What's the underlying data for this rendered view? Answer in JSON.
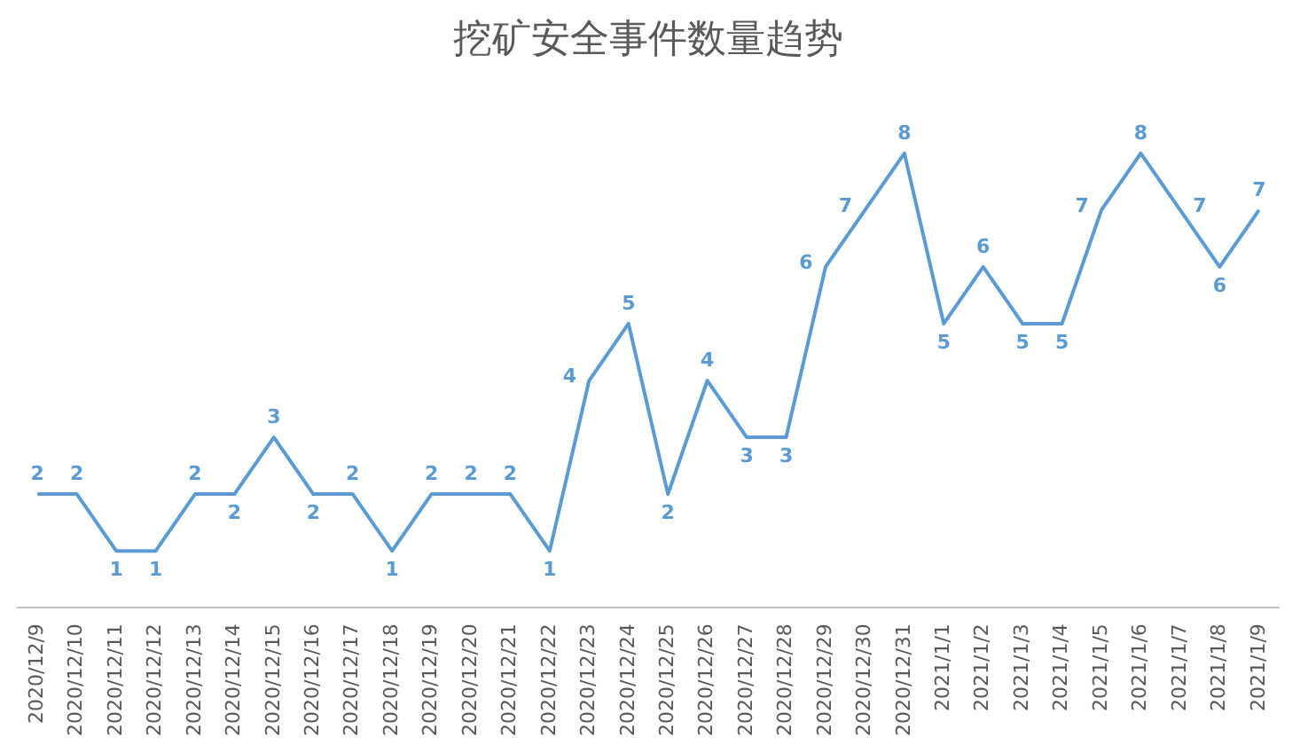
{
  "chart_data": {
    "type": "line",
    "title": "挖矿安全事件数量趋势",
    "categories": [
      "2020/12/9",
      "2020/12/10",
      "2020/12/11",
      "2020/12/12",
      "2020/12/13",
      "2020/12/14",
      "2020/12/15",
      "2020/12/16",
      "2020/12/17",
      "2020/12/18",
      "2020/12/19",
      "2020/12/20",
      "2020/12/21",
      "2020/12/22",
      "2020/12/23",
      "2020/12/24",
      "2020/12/25",
      "2020/12/26",
      "2020/12/27",
      "2020/12/28",
      "2020/12/29",
      "2020/12/30",
      "2020/12/31",
      "2021/1/1",
      "2021/1/2",
      "2021/1/3",
      "2021/1/4",
      "2021/1/5",
      "2021/1/6",
      "2021/1/7",
      "2021/1/8",
      "2021/1/9"
    ],
    "series": [
      {
        "color": "#5b9bd5",
        "values": [
          2,
          2,
          1,
          1,
          2,
          2,
          3,
          2,
          2,
          1,
          2,
          2,
          2,
          1,
          4,
          5,
          2,
          4,
          3,
          3,
          6,
          7,
          8,
          5,
          6,
          5,
          5,
          7,
          8,
          7,
          6,
          7
        ]
      }
    ],
    "data_labels": true,
    "grid": false,
    "legend": false,
    "marker": "none",
    "line_style": "solid",
    "tick_labels": "x"
  }
}
